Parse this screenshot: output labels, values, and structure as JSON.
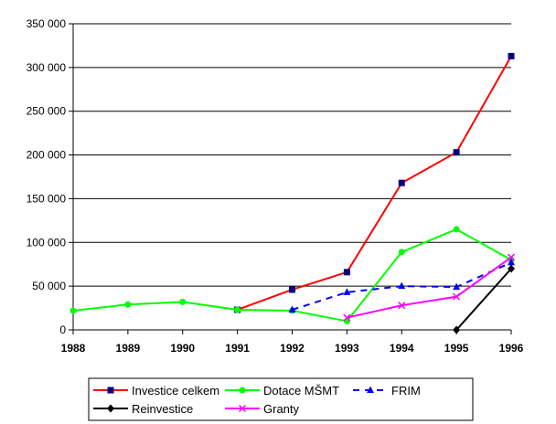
{
  "chart_data": {
    "type": "line",
    "x": [
      "1988",
      "1989",
      "1990",
      "1991",
      "1992",
      "1993",
      "1994",
      "1995",
      "1996"
    ],
    "ylim": [
      0,
      350000
    ],
    "yticks": [
      {
        "value": 0,
        "label": "0"
      },
      {
        "value": 50000,
        "label": "50 000"
      },
      {
        "value": 100000,
        "label": "100 000"
      },
      {
        "value": 150000,
        "label": "150 000"
      },
      {
        "value": 200000,
        "label": "200 000"
      },
      {
        "value": 250000,
        "label": "250 000"
      },
      {
        "value": 300000,
        "label": "300 000"
      },
      {
        "value": 350000,
        "label": "350 000"
      }
    ],
    "grid": "horizontal",
    "legend_position": "bottom",
    "series": [
      {
        "name": "Investice celkem",
        "color": "#ff0000",
        "marker": "square",
        "marker_color": "#000080",
        "dashed": false,
        "values": [
          null,
          null,
          null,
          23000,
          46000,
          66000,
          168000,
          203000,
          313000
        ]
      },
      {
        "name": "Dotace MŠMT",
        "color": "#00ff00",
        "marker": "circle",
        "marker_color": "#00ff00",
        "dashed": false,
        "values": [
          22000,
          29000,
          32000,
          23000,
          22000,
          10000,
          89000,
          115000,
          80000
        ]
      },
      {
        "name": "FRIM",
        "color": "#0000ff",
        "marker": "triangle",
        "marker_color": "#0000ff",
        "dashed": true,
        "values": [
          null,
          null,
          null,
          null,
          23000,
          43000,
          50000,
          49000,
          77000
        ]
      },
      {
        "name": "Reinvestice",
        "color": "#000000",
        "marker": "diamond",
        "marker_color": "#000000",
        "dashed": false,
        "values": [
          null,
          null,
          null,
          null,
          null,
          null,
          null,
          0,
          70000
        ]
      },
      {
        "name": "Granty",
        "color": "#ff00ff",
        "marker": "x",
        "marker_color": "#ff00ff",
        "dashed": false,
        "values": [
          null,
          null,
          null,
          null,
          null,
          14000,
          28000,
          38000,
          83000
        ]
      }
    ]
  }
}
